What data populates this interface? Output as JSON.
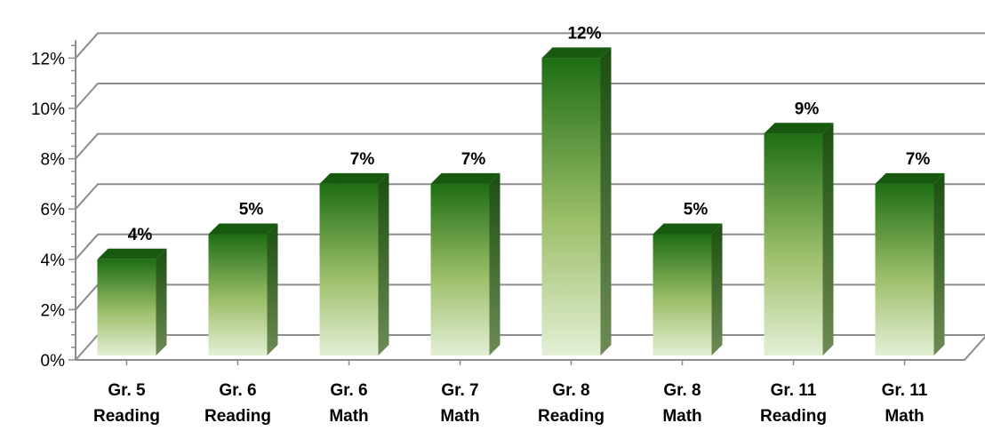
{
  "chart_data": {
    "type": "bar",
    "style": "3d-column",
    "categories": [
      [
        "Gr. 5",
        "Reading"
      ],
      [
        "Gr. 6",
        "Reading"
      ],
      [
        "Gr. 6",
        "Math"
      ],
      [
        "Gr. 7",
        "Math"
      ],
      [
        "Gr. 8",
        "Reading"
      ],
      [
        "Gr. 8",
        "Math"
      ],
      [
        "Gr. 11",
        "Reading"
      ],
      [
        "Gr. 11",
        "Math"
      ]
    ],
    "values": [
      4,
      5,
      7,
      7,
      12,
      5,
      9,
      7
    ],
    "data_labels": [
      "4%",
      "5%",
      "7%",
      "7%",
      "12%",
      "5%",
      "9%",
      "7%"
    ],
    "y_ticks": [
      0,
      2,
      4,
      6,
      8,
      10,
      12
    ],
    "y_tick_labels": [
      "0%",
      "2%",
      "4%",
      "6%",
      "8%",
      "10%",
      "12%"
    ],
    "ylim": [
      0,
      12.5
    ],
    "title": "",
    "xlabel": "",
    "ylabel": "",
    "grid": true,
    "legend": "none",
    "colors": {
      "bar_top": "#1e6e14",
      "bar_mid": "#9dbf6a",
      "bar_bottom": "#e4efd5",
      "bar_side": "#3f6b28",
      "bar_cap": "#175a0f",
      "grid": "#8c8c8c",
      "axis": "#8c8c8c"
    }
  }
}
